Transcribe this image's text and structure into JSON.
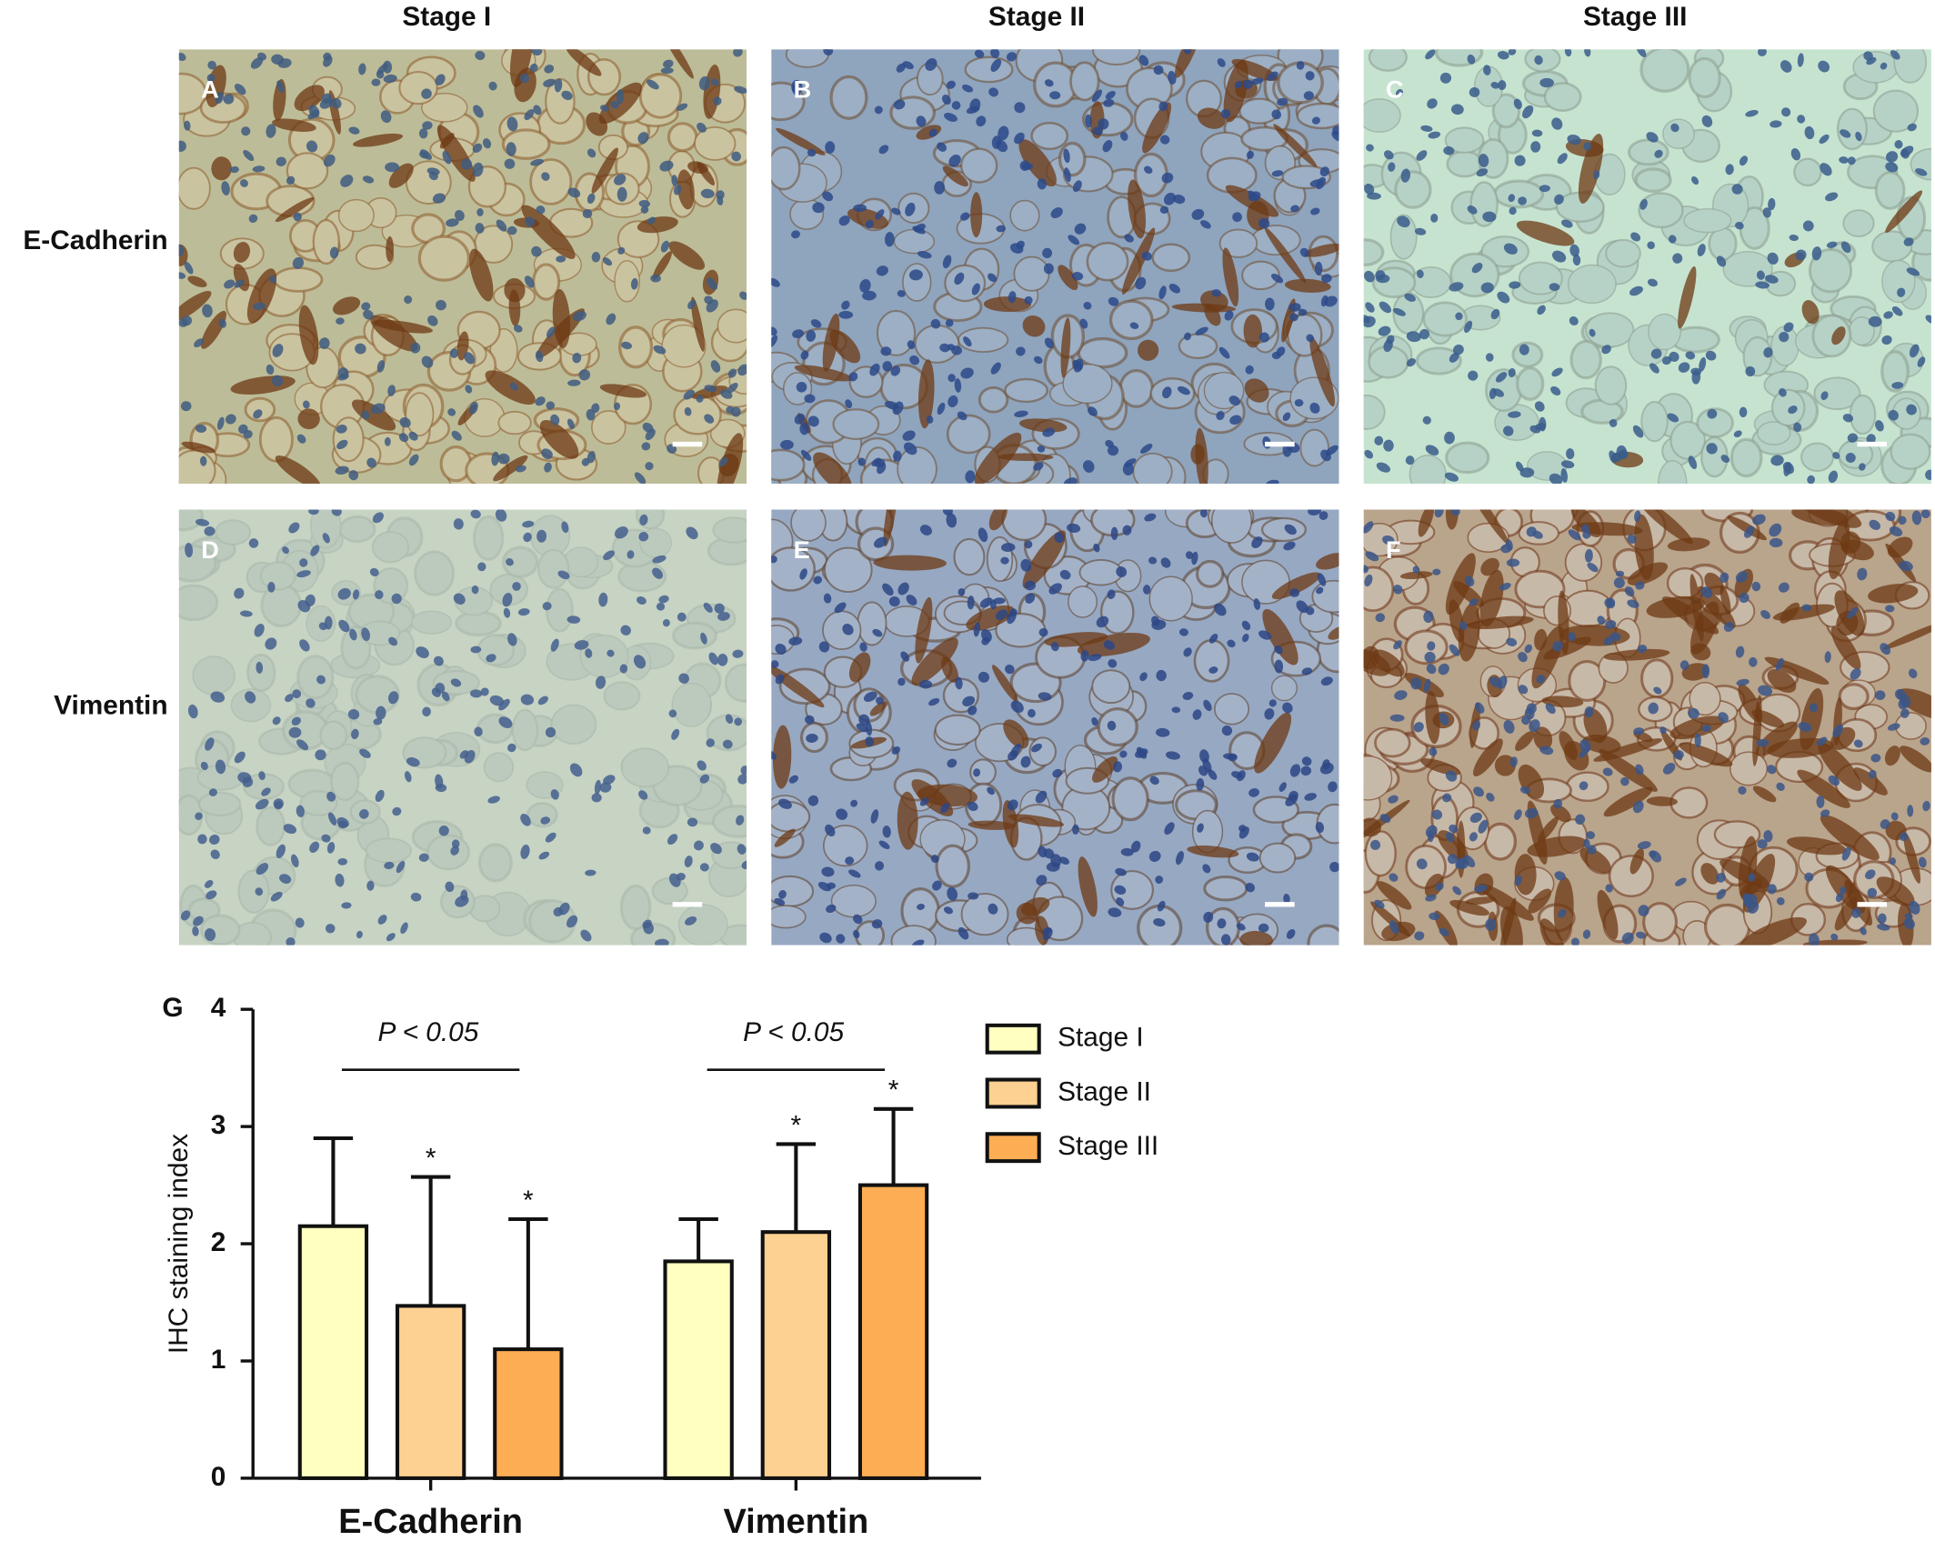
{
  "figure": {
    "columns": [
      "Stage I",
      "Stage II",
      "Stage III"
    ],
    "rows": [
      "E-Cadherin",
      "Vimentin"
    ],
    "panels": [
      {
        "label": "A"
      },
      {
        "label": "B"
      },
      {
        "label": "C"
      },
      {
        "label": "D"
      },
      {
        "label": "E"
      },
      {
        "label": "F"
      }
    ]
  },
  "chart_data": {
    "type": "bar",
    "panel_label": "G",
    "y_label": "IHC staining index",
    "categories": [
      "E-Cadherin",
      "Vimentin"
    ],
    "series": [
      {
        "name": "Stage I",
        "color": "#ffffc0",
        "values": [
          2.15,
          1.85
        ],
        "errors": [
          0.75,
          0.36
        ]
      },
      {
        "name": "Stage II",
        "color": "#fdd191",
        "values": [
          1.47,
          2.1
        ],
        "errors": [
          1.1,
          0.75
        ],
        "significance": [
          "*",
          "*"
        ]
      },
      {
        "name": "Stage III",
        "color": "#fdae55",
        "values": [
          1.1,
          2.5
        ],
        "errors": [
          1.11,
          0.65
        ],
        "significance": [
          "*",
          "*"
        ]
      }
    ],
    "annotations": [
      "P < 0.05",
      "P < 0.05"
    ],
    "ylim": [
      0,
      4
    ],
    "yticks": [
      0,
      1,
      2,
      3,
      4
    ]
  }
}
